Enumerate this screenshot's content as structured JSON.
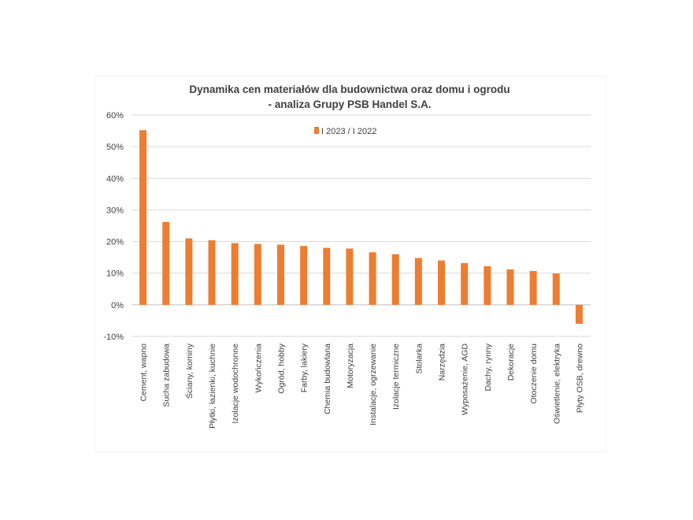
{
  "chart_data": {
    "type": "bar",
    "title_lines": [
      "Dynamika cen materiałów dla budownictwa oraz domu i ogrodu",
      "- analiza Grupy PSB Handel S.A."
    ],
    "xlabel": "",
    "ylabel": "",
    "ylim": [
      -10,
      60
    ],
    "yticks": [
      60,
      50,
      40,
      30,
      20,
      10,
      0,
      -10
    ],
    "ytick_labels": [
      "60%",
      "50%",
      "40%",
      "30%",
      "20%",
      "10%",
      "0%",
      "-10%"
    ],
    "grid": true,
    "legend_position": "top-center",
    "bar_color": "#ED7D31",
    "categories": [
      "Cement, wapno",
      "Sucha zabudowa",
      "Ściany, kominy",
      "Płytki, łazienki, kuchnie",
      "Izolacje wodochronne",
      "Wykończenia",
      "Ogród, hobby",
      "Farby, lakiery",
      "Chemia budowlana",
      "Motoryzacja",
      "Instalacje, ogrzewanie",
      "Izolacje termiczne",
      "Stolarka",
      "Narzędzia",
      "Wyposażenie, AGD",
      "Dachy, rynny",
      "Dekoracje",
      "Otoczenie domu",
      "Oświetlenie, elektryka",
      "Płyty OSB, drewno"
    ],
    "series": [
      {
        "name": "I 2023 / I 2022",
        "values": [
          55.2,
          26.2,
          21.0,
          20.4,
          19.5,
          19.2,
          19.0,
          18.6,
          18.0,
          17.8,
          16.6,
          16.0,
          14.8,
          14.0,
          13.2,
          12.2,
          11.2,
          10.7,
          9.9,
          -6.0
        ]
      }
    ]
  }
}
